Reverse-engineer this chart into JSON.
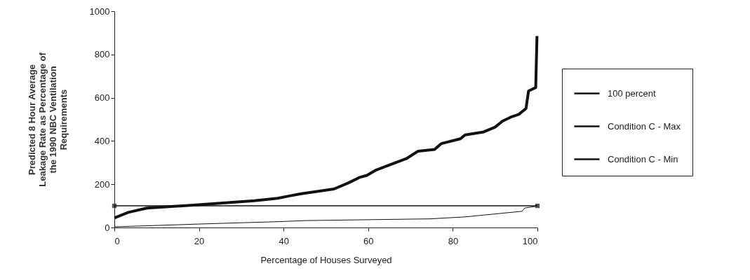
{
  "chart_data": {
    "type": "line",
    "xlabel": "Percentage of Houses Surveyed",
    "ylabel": "Predicted 8 Hour Average\nLeakage Rate as Percentage of\nthe 1990 NBC Ventilation\nRequirements",
    "xlim": [
      0,
      100
    ],
    "xticks": [
      0,
      20,
      40,
      60,
      80,
      100
    ],
    "ylim": [
      0,
      1000
    ],
    "yticks": [
      0,
      200,
      400,
      600,
      800,
      1000
    ],
    "grid": false,
    "legend": "right",
    "series": [
      {
        "name": "100 percent",
        "color": "#111111",
        "marker": "square",
        "x": [
          0,
          100
        ],
        "values": [
          100,
          100
        ]
      },
      {
        "name": "Condition C - Max",
        "color": "#111111",
        "marker": "none",
        "x": [
          0,
          0.2,
          3.3,
          7.7,
          19.9,
          33.1,
          38.6,
          41.4,
          44.2,
          51.9,
          55.2,
          58,
          59.7,
          61.9,
          64.6,
          69,
          71.8,
          75.7,
          77.3,
          81.8,
          82.9,
          87.3,
          90,
          91.7,
          93.9,
          95.6,
          97.3,
          97.9,
          99.6,
          99.9
        ],
        "values": [
          45,
          46,
          70,
          90,
          105,
          124,
          135,
          146,
          156,
          178,
          205,
          232,
          241,
          266,
          286,
          318,
          353,
          361,
          388,
          410,
          428,
          442,
          464,
          491,
          512,
          523,
          550,
          631,
          647,
          885
        ]
      },
      {
        "name": "Condition C - Min",
        "color": "#111111",
        "marker": "none",
        "x": [
          0,
          20,
          38.6,
          45.3,
          74.6,
          82.9,
          91.2,
          96.4,
          97,
          99.4,
          100
        ],
        "values": [
          3,
          16,
          27,
          32,
          40,
          49,
          65,
          75,
          90,
          97,
          105
        ]
      }
    ]
  }
}
